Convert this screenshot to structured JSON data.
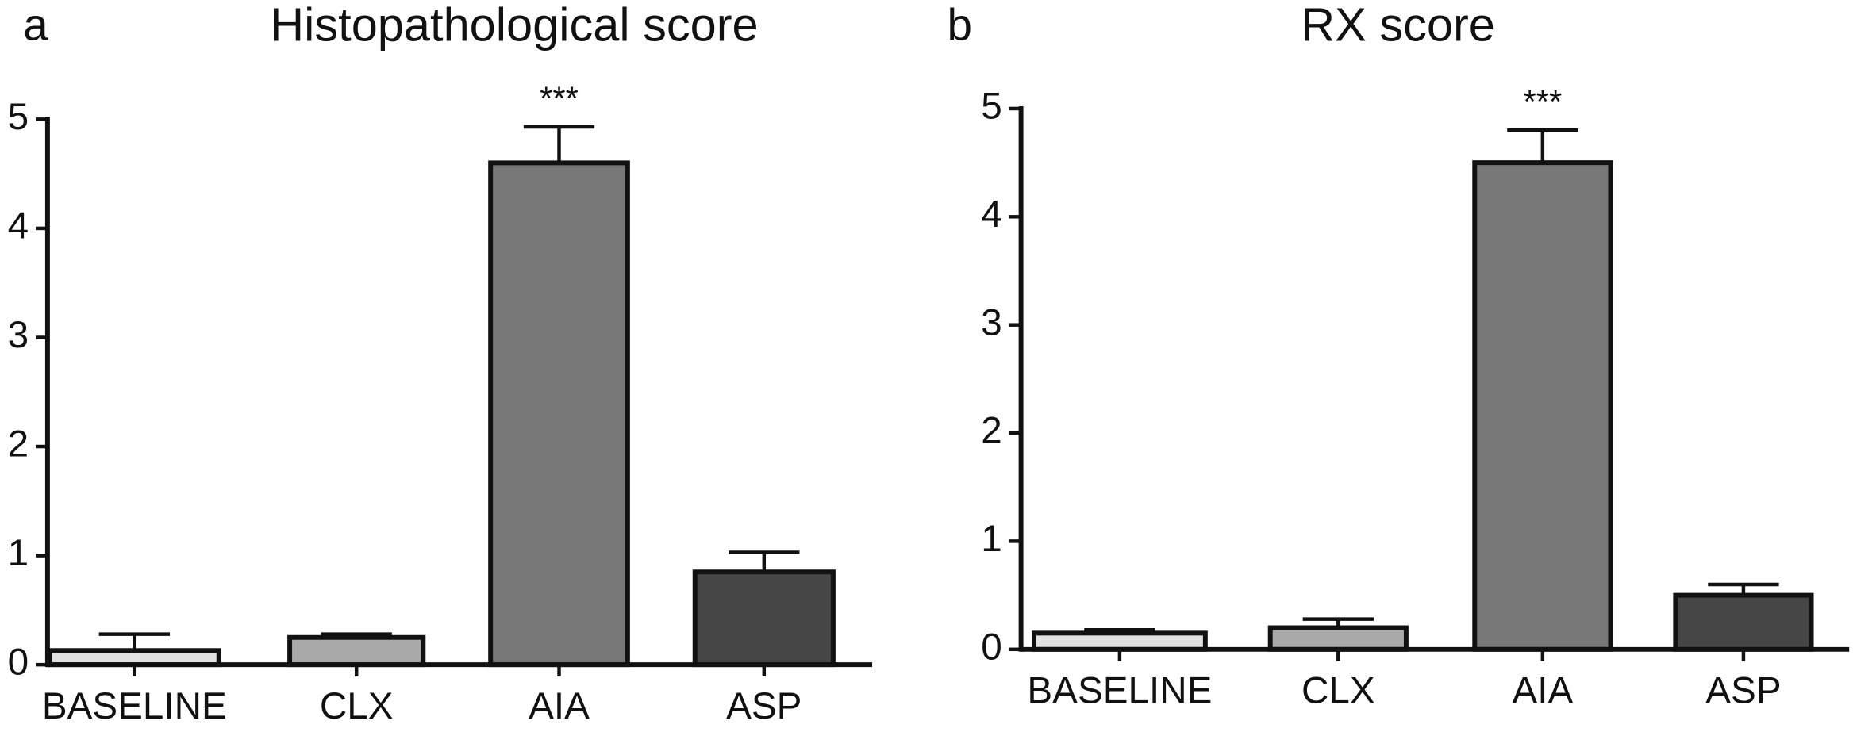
{
  "chart_data": [
    {
      "type": "bar",
      "panel_label": "a",
      "title": "Histopathological score",
      "categories": [
        "BASELINE",
        "CLX",
        "AIA",
        "ASP"
      ],
      "values": [
        0.13,
        0.25,
        4.6,
        0.85
      ],
      "errors": [
        0.15,
        0.03,
        0.33,
        0.18
      ],
      "colors": [
        "#e2e2e2",
        "#a9a9a9",
        "#787878",
        "#464646"
      ],
      "ylim": [
        0,
        5
      ],
      "yticks": [
        0,
        1,
        2,
        3,
        4,
        5
      ],
      "annotations": [
        {
          "text": "***",
          "category": "AIA"
        }
      ]
    },
    {
      "type": "bar",
      "panel_label": "b",
      "title": "RX score",
      "categories": [
        "BASELINE",
        "CLX",
        "AIA",
        "ASP"
      ],
      "values": [
        0.15,
        0.2,
        4.5,
        0.5
      ],
      "errors": [
        0.03,
        0.08,
        0.3,
        0.1
      ],
      "colors": [
        "#e2e2e2",
        "#a9a9a9",
        "#787878",
        "#464646"
      ],
      "ylim": [
        0,
        5
      ],
      "yticks": [
        0,
        1,
        2,
        3,
        4,
        5
      ],
      "annotations": [
        {
          "text": "***",
          "category": "AIA"
        }
      ]
    }
  ]
}
